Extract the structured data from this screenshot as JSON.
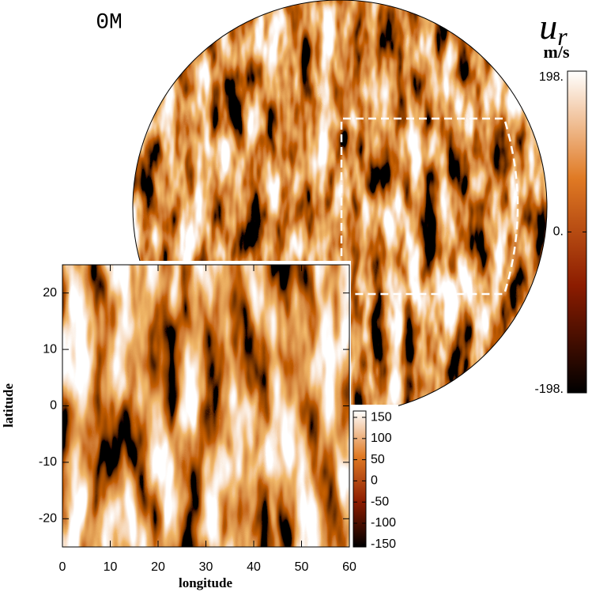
{
  "chart_data": [
    {
      "type": "heatmap",
      "title": "0M",
      "colorbar_symbol": "u",
      "colorbar_subscript": "r",
      "colorbar_unit": "m/s",
      "clim": [
        -198,
        198
      ],
      "cticks": [
        {
          "value": 198,
          "label": "198."
        },
        {
          "value": 0,
          "label": "0."
        },
        {
          "value": -198,
          "label": "-198."
        }
      ],
      "colormap": [
        "#000000",
        "#8c1c00",
        "#e07a24",
        "#ffffff"
      ]
    },
    {
      "type": "heatmap",
      "xlabel": "longitude",
      "ylabel": "latitude",
      "xlim": [
        0,
        60
      ],
      "ylim": [
        -25,
        25
      ],
      "xticks": [
        0,
        10,
        20,
        30,
        40,
        50,
        60
      ],
      "yticks": [
        -20,
        -10,
        0,
        10,
        20
      ],
      "clim": [
        -156,
        165
      ],
      "cticks": [
        -150,
        -100,
        -50,
        0,
        50,
        100,
        150
      ],
      "colormap": [
        "#000000",
        "#8c1c00",
        "#e07a24",
        "#ffffff"
      ]
    }
  ]
}
